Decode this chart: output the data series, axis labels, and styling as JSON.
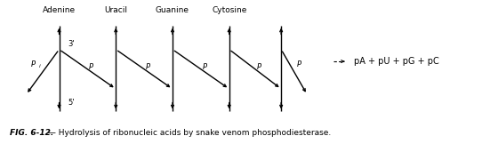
{
  "title": "FIG. 6-12.",
  "caption": " — Hydrolysis of ribonucleic acids by snake venom phosphodiesterase.",
  "base_labels": [
    "Adenine",
    "Uracil",
    "Guanine",
    "Cytosine"
  ],
  "fig_color": "#000000",
  "bg_color": "#ffffff",
  "result_text": "pA + pU + pG + pC"
}
